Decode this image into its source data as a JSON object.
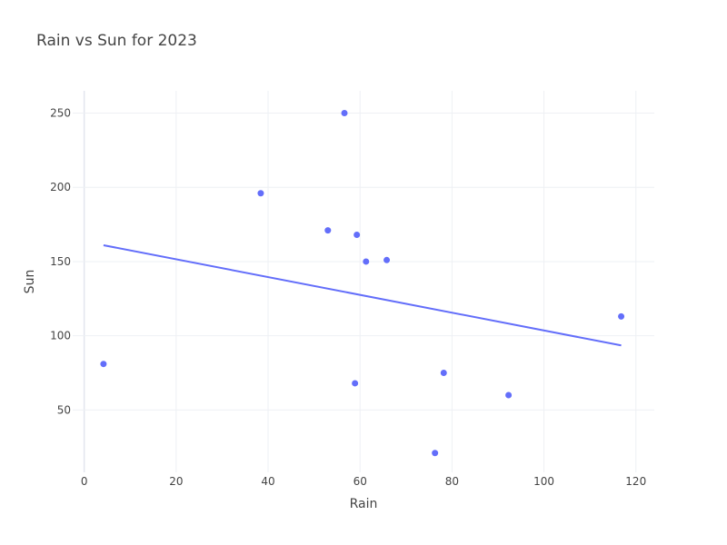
{
  "chart_data": {
    "type": "scatter",
    "title": "Rain vs Sun for 2023",
    "xlabel": "Rain",
    "ylabel": "Sun",
    "xlim": [
      -2.5,
      124
    ],
    "ylim": [
      8,
      265
    ],
    "x_ticks": [
      0,
      20,
      40,
      60,
      80,
      100,
      120
    ],
    "y_ticks": [
      50,
      100,
      150,
      200,
      250
    ],
    "grid": true,
    "color": "#636efa",
    "points": [
      {
        "x": 4.2,
        "y": 81
      },
      {
        "x": 38.4,
        "y": 196
      },
      {
        "x": 53.0,
        "y": 171
      },
      {
        "x": 56.6,
        "y": 250
      },
      {
        "x": 58.9,
        "y": 68
      },
      {
        "x": 59.3,
        "y": 168
      },
      {
        "x": 61.3,
        "y": 150
      },
      {
        "x": 65.8,
        "y": 151
      },
      {
        "x": 76.3,
        "y": 21
      },
      {
        "x": 78.2,
        "y": 75
      },
      {
        "x": 92.3,
        "y": 60
      },
      {
        "x": 116.8,
        "y": 113
      }
    ],
    "trendline": [
      {
        "x": 4.2,
        "y": 161
      },
      {
        "x": 116.8,
        "y": 93.5
      }
    ]
  }
}
